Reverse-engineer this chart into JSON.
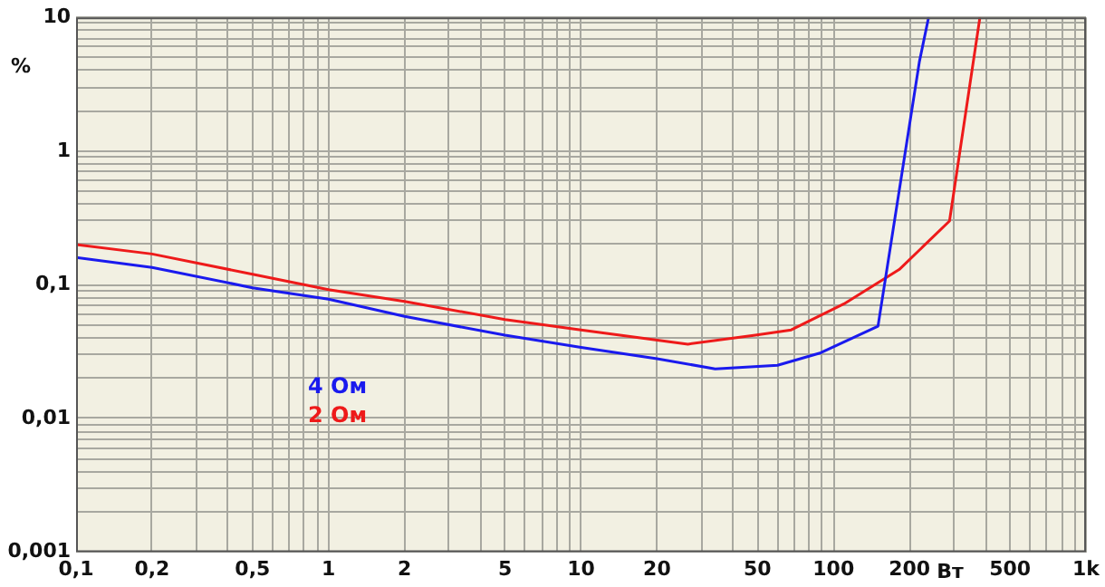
{
  "chart_data": {
    "type": "line",
    "xlabel": "Вт",
    "ylabel": "%",
    "log": "xy",
    "grid": true,
    "legend": "bottom left",
    "marker": "none",
    "line_style": "solid",
    "xlim": [
      0.1,
      1000
    ],
    "ylim": [
      0.001,
      10
    ],
    "xticks": [
      {
        "value": 0.1,
        "label": "0,1"
      },
      {
        "value": 0.2,
        "label": "0,2"
      },
      {
        "value": 0.3,
        "label": null
      },
      {
        "value": 0.4,
        "label": null
      },
      {
        "value": 0.5,
        "label": "0,5"
      },
      {
        "value": 0.6,
        "label": null
      },
      {
        "value": 0.7,
        "label": null
      },
      {
        "value": 0.8,
        "label": null
      },
      {
        "value": 0.9,
        "label": null
      },
      1,
      2,
      {
        "value": 3,
        "label": null
      },
      {
        "value": 4,
        "label": null
      },
      5,
      {
        "value": 6,
        "label": null
      },
      {
        "value": 7,
        "label": null
      },
      {
        "value": 8,
        "label": null
      },
      {
        "value": 9,
        "label": null
      },
      10,
      20,
      {
        "value": 30,
        "label": null
      },
      {
        "value": 40,
        "label": null
      },
      50,
      {
        "value": 60,
        "label": null
      },
      {
        "value": 70,
        "label": null
      },
      {
        "value": 80,
        "label": null
      },
      {
        "value": 90,
        "label": null
      },
      100,
      200,
      {
        "value": 300,
        "label": null
      },
      {
        "value": 400,
        "label": null
      },
      500,
      {
        "value": 600,
        "label": null
      },
      {
        "value": 700,
        "label": null
      },
      {
        "value": 800,
        "label": null
      },
      {
        "value": 900,
        "label": null
      },
      {
        "value": 1000,
        "label": "1k"
      }
    ],
    "yticks": [
      {
        "value": 0.001,
        "label": "0,001"
      },
      {
        "value": 0.002,
        "label": null
      },
      {
        "value": 0.003,
        "label": null
      },
      {
        "value": 0.004,
        "label": null
      },
      {
        "value": 0.005,
        "label": null
      },
      {
        "value": 0.006,
        "label": null
      },
      {
        "value": 0.007,
        "label": null
      },
      {
        "value": 0.008,
        "label": null
      },
      {
        "value": 0.009,
        "label": null
      },
      {
        "value": 0.01,
        "label": "0,01"
      },
      {
        "value": 0.02,
        "label": null
      },
      {
        "value": 0.03,
        "label": null
      },
      {
        "value": 0.04,
        "label": null
      },
      {
        "value": 0.05,
        "label": null
      },
      {
        "value": 0.06,
        "label": null
      },
      {
        "value": 0.07,
        "label": null
      },
      {
        "value": 0.08,
        "label": null
      },
      {
        "value": 0.09,
        "label": null
      },
      {
        "value": 0.1,
        "label": "0,1"
      },
      {
        "value": 0.2,
        "label": null
      },
      {
        "value": 0.3,
        "label": null
      },
      {
        "value": 0.4,
        "label": null
      },
      {
        "value": 0.5,
        "label": null
      },
      {
        "value": 0.6,
        "label": null
      },
      {
        "value": 0.7,
        "label": null
      },
      {
        "value": 0.8,
        "label": null
      },
      {
        "value": 0.9,
        "label": null
      },
      1,
      {
        "value": 2,
        "label": null
      },
      {
        "value": 3,
        "label": null
      },
      {
        "value": 4,
        "label": null
      },
      {
        "value": 5,
        "label": null
      },
      {
        "value": 6,
        "label": null
      },
      {
        "value": 7,
        "label": null
      },
      {
        "value": 8,
        "label": null
      },
      {
        "value": 9,
        "label": null
      },
      10
    ],
    "series": [
      {
        "name": "4 Ом",
        "color": "#1a1aee",
        "x": [
          0.1,
          0.2,
          0.5,
          1,
          2,
          5,
          10,
          20,
          34,
          60,
          89,
          150,
          219,
          238
        ],
        "values": [
          0.16,
          0.135,
          0.095,
          0.078,
          0.058,
          0.042,
          0.034,
          0.028,
          0.0235,
          0.025,
          0.031,
          0.049,
          4.7,
          10
        ]
      },
      {
        "name": "2 Ом",
        "color": "#ee1a1a",
        "x": [
          0.1,
          0.2,
          0.5,
          1,
          2,
          5,
          10,
          26.5,
          49,
          68,
          110,
          182,
          288,
          380
        ],
        "values": [
          0.2,
          0.17,
          0.12,
          0.092,
          0.075,
          0.055,
          0.046,
          0.036,
          0.042,
          0.046,
          0.072,
          0.13,
          0.3,
          10
        ]
      }
    ]
  }
}
